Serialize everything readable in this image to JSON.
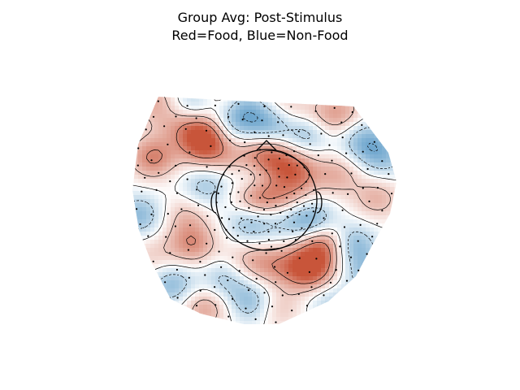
{
  "chart_data": {
    "type": "heatmap",
    "title_lines": [
      "Group Avg: Post-Stimulus",
      "Red=Food, Blue=Non-Food"
    ],
    "xlabel": "",
    "ylabel": "",
    "colormap": "diverging red-white-blue",
    "colors": {
      "positive": "#c8553a",
      "neutral": "#ffffff",
      "negative": "#2f7fb8"
    },
    "grid": false,
    "legend": "none",
    "sources": [
      {
        "x": -0.86,
        "y": 0.95,
        "w": 0.5
      },
      {
        "x": -0.52,
        "y": 0.9,
        "w": -0.6
      },
      {
        "x": -0.35,
        "y": 0.95,
        "w": 0.4
      },
      {
        "x": -0.5,
        "y": 0.7,
        "w": 0.8
      },
      {
        "x": -0.45,
        "y": 0.55,
        "w": 0.9
      },
      {
        "x": -0.85,
        "y": 0.45,
        "w": 0.8
      },
      {
        "x": -0.7,
        "y": 0.75,
        "w": 0.3
      },
      {
        "x": -0.23,
        "y": 0.78,
        "w": -0.6
      },
      {
        "x": -0.1,
        "y": 0.93,
        "w": -0.4
      },
      {
        "x": 0.05,
        "y": 0.97,
        "w": 0.3
      },
      {
        "x": 0.05,
        "y": 0.75,
        "w": -0.7
      },
      {
        "x": 0.2,
        "y": 0.82,
        "w": 0.4
      },
      {
        "x": 0.33,
        "y": 0.68,
        "w": -0.7
      },
      {
        "x": 0.45,
        "y": 0.78,
        "w": 0.5
      },
      {
        "x": 0.6,
        "y": 0.85,
        "w": 0.4
      },
      {
        "x": 0.75,
        "y": 0.6,
        "w": -0.6
      },
      {
        "x": 0.9,
        "y": 0.45,
        "w": -0.5
      },
      {
        "x": 0.55,
        "y": 0.3,
        "w": 0.5
      },
      {
        "x": 0.85,
        "y": 0.1,
        "w": 0.5
      },
      {
        "x": -0.95,
        "y": -0.05,
        "w": -0.6
      },
      {
        "x": -0.6,
        "y": -0.05,
        "w": 0.4
      },
      {
        "x": -0.55,
        "y": -0.3,
        "w": 0.7
      },
      {
        "x": -0.45,
        "y": 0.2,
        "w": -0.5
      },
      {
        "x": -0.2,
        "y": 0.4,
        "w": 0.5
      },
      {
        "x": 0.02,
        "y": 0.45,
        "w": 0.9
      },
      {
        "x": -0.12,
        "y": 0.3,
        "w": -0.6
      },
      {
        "x": 0.22,
        "y": 0.33,
        "w": 0.9
      },
      {
        "x": 0.12,
        "y": 0.2,
        "w": -0.5
      },
      {
        "x": 0.05,
        "y": 0.15,
        "w": 0.5
      },
      {
        "x": 0.18,
        "y": 0.12,
        "w": 0.6
      },
      {
        "x": -0.1,
        "y": 0.12,
        "w": 0.5
      },
      {
        "x": 0.0,
        "y": 0.0,
        "w": 0.5
      },
      {
        "x": -0.1,
        "y": -0.1,
        "w": -0.7
      },
      {
        "x": 0.1,
        "y": -0.05,
        "w": -0.5
      },
      {
        "x": 0.35,
        "y": -0.1,
        "w": -0.8
      },
      {
        "x": 0.45,
        "y": -0.3,
        "w": 1.0
      },
      {
        "x": 0.65,
        "y": -0.3,
        "w": -0.7
      },
      {
        "x": 0.78,
        "y": -0.55,
        "w": -0.5
      },
      {
        "x": 0.4,
        "y": -0.55,
        "w": 0.4
      },
      {
        "x": 0.3,
        "y": -0.5,
        "w": 0.9
      },
      {
        "x": 0.05,
        "y": -0.48,
        "w": 0.5
      },
      {
        "x": -0.15,
        "y": -0.45,
        "w": 0.4
      },
      {
        "x": -0.3,
        "y": -0.6,
        "w": -0.5
      },
      {
        "x": -0.45,
        "y": -0.85,
        "w": 0.6
      },
      {
        "x": -0.7,
        "y": -0.65,
        "w": -0.6
      },
      {
        "x": -0.1,
        "y": -0.8,
        "w": -0.6
      },
      {
        "x": 0.1,
        "y": -0.85,
        "w": 0.4
      },
      {
        "x": 0.5,
        "y": -0.8,
        "w": -0.4
      },
      {
        "x": -0.85,
        "y": -0.4,
        "w": 0.3
      }
    ]
  }
}
